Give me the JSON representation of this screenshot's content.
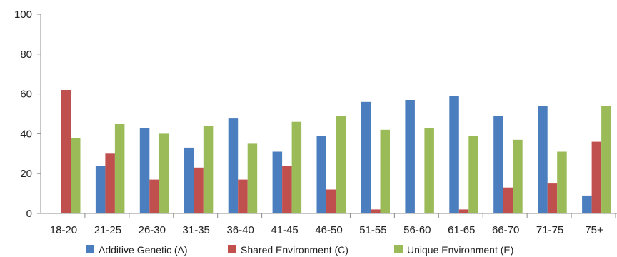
{
  "chart_data": {
    "type": "bar",
    "categories": [
      "18-20",
      "21-25",
      "26-30",
      "31-35",
      "36-40",
      "41-45",
      "46-50",
      "51-55",
      "56-60",
      "61-65",
      "66-70",
      "71-75",
      "75+"
    ],
    "series": [
      {
        "name": "Additive Genetic (A)",
        "color": "#4a7ebf",
        "values": [
          0,
          24,
          43,
          33,
          48,
          31,
          39,
          56,
          57,
          59,
          49,
          54,
          9
        ]
      },
      {
        "name": "Shared Environment (C)",
        "color": "#c0504d",
        "values": [
          62,
          30,
          17,
          23,
          17,
          24,
          12,
          2,
          0,
          2,
          13,
          15,
          36
        ]
      },
      {
        "name": "Unique Environment (E)",
        "color": "#9bbb59",
        "values": [
          38,
          45,
          40,
          44,
          35,
          46,
          49,
          42,
          43,
          39,
          37,
          31,
          54
        ]
      }
    ],
    "title": "",
    "xlabel": "",
    "ylabel": "",
    "ylim": [
      0,
      100
    ],
    "yticks": [
      "0",
      "20",
      "40",
      "60",
      "80",
      "100"
    ],
    "grid": false,
    "legend_position": "bottom"
  }
}
